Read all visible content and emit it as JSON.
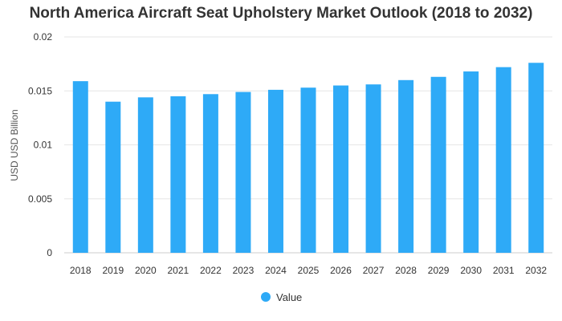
{
  "chart_data": {
    "type": "bar",
    "title": "North America Aircraft Seat Upholstery Market Outlook (2018 to 2032)",
    "xlabel": "",
    "ylabel": "USD USD Billion",
    "categories": [
      "2018",
      "2019",
      "2020",
      "2021",
      "2022",
      "2023",
      "2024",
      "2025",
      "2026",
      "2027",
      "2028",
      "2029",
      "2030",
      "2031",
      "2032"
    ],
    "series": [
      {
        "name": "Value",
        "color": "#2eaaf7",
        "values": [
          0.0159,
          0.014,
          0.0144,
          0.0145,
          0.0147,
          0.0149,
          0.0151,
          0.0153,
          0.0155,
          0.0156,
          0.016,
          0.0163,
          0.0168,
          0.0172,
          0.0176
        ]
      }
    ],
    "ylim": [
      0,
      0.02
    ],
    "yticks": [
      0,
      0.005,
      0.01,
      0.015,
      0.02
    ],
    "ytick_labels": [
      "0",
      "0.005",
      "0.01",
      "0.015",
      "0.02"
    ],
    "grid": true,
    "legend_position": "bottom"
  }
}
